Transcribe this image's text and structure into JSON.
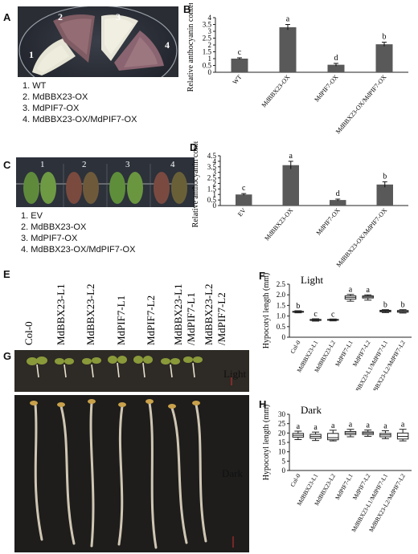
{
  "panels": {
    "A": {
      "label": "A",
      "sectors": [
        "1",
        "2",
        "3",
        "4"
      ],
      "legend": [
        "1. WT",
        "2. MdBBX23-OX",
        "3. MdPIF7-OX",
        "4. MdBBX23-OX/MdPIF7-OX"
      ]
    },
    "C": {
      "label": "C",
      "columns": [
        "1",
        "2",
        "3",
        "4"
      ],
      "legend": [
        "1. EV",
        "2. MdBBX23-OX",
        "3. MdPIF7-OX",
        "4. MdBBX23-OX/MdPIF7-OX"
      ]
    },
    "E": {
      "label": "E",
      "genotypes": [
        "Col-0",
        "MdBBX23-L1",
        "MdBBX23-L2",
        "MdPIF7-L1",
        "MdPIF7-L2",
        "MdBBX23-L1",
        "/MdPIF7-L1",
        "MdBBX23-L2",
        "/MdPIF7-L2"
      ]
    },
    "G": {
      "label": "G",
      "light": "Light",
      "dark": "Dark"
    }
  },
  "chart_data": [
    {
      "id": "B",
      "label": "B",
      "type": "bar",
      "ylabel": "Relative anthocyanin content",
      "categories": [
        "WT",
        "MdBBX23-OX",
        "MdPIF7-OX",
        "MdBBX23-OX/MdPIF7-OX"
      ],
      "values": [
        1.0,
        3.3,
        0.55,
        2.05
      ],
      "errors": [
        0.06,
        0.2,
        0.1,
        0.15
      ],
      "letters": [
        "c",
        "a",
        "d",
        "b"
      ],
      "ylim": [
        0,
        4
      ],
      "ticks": [
        "0",
        "0.5",
        "1",
        "1.5",
        "2",
        "2.5",
        "3",
        "3.5",
        "4"
      ]
    },
    {
      "id": "D",
      "label": "D",
      "type": "bar",
      "ylabel": "Relative anthocyanin content",
      "categories": [
        "EV",
        "MdBBX23-OX",
        "MdPIF7-OX",
        "MdBBX23-OX/MdPIF7-OX"
      ],
      "values": [
        1.0,
        3.65,
        0.5,
        1.9
      ],
      "errors": [
        0.08,
        0.35,
        0.08,
        0.25
      ],
      "letters": [
        "c",
        "a",
        "d",
        "b"
      ],
      "ylim": [
        0,
        4.5
      ],
      "ticks": [
        "0",
        "0.5",
        "1",
        "1.5",
        "2",
        "2.5",
        "3",
        "3.5",
        "4",
        "4.5"
      ]
    },
    {
      "id": "F",
      "label": "F",
      "type": "box",
      "title": "Light",
      "ylabel": "Hypocotyl  length (mm)",
      "categories": [
        "Col-0",
        "MdBBX23-L1",
        "MdBBX23-L2",
        "MdPIF7-L1",
        "MdPIF7-L2",
        "MdBBX23-L1/MdPIF7-L1",
        "MdBBX23-L2/MdPIF7-L2"
      ],
      "boxes": [
        [
          1.15,
          1.18,
          1.2,
          1.22,
          1.25
        ],
        [
          0.76,
          0.79,
          0.81,
          0.84,
          0.87
        ],
        [
          0.77,
          0.8,
          0.82,
          0.84,
          0.86
        ],
        [
          1.7,
          1.8,
          1.88,
          1.95,
          2.02
        ],
        [
          1.75,
          1.85,
          1.9,
          1.95,
          2.0
        ],
        [
          1.16,
          1.2,
          1.23,
          1.27,
          1.3
        ],
        [
          1.14,
          1.18,
          1.22,
          1.26,
          1.3
        ]
      ],
      "letters": [
        "b",
        "c",
        "c",
        "a",
        "a",
        "b",
        "b"
      ],
      "ylim": [
        0,
        2.5
      ],
      "ticks": [
        "0",
        "0.5",
        "1.0",
        "1.5",
        "2.0",
        "2.5"
      ]
    },
    {
      "id": "H",
      "label": "H",
      "type": "box",
      "title": "Dark",
      "ylabel": "Hypocotyl  length (mm)",
      "categories": [
        "Col-0",
        "MdBBX23-L1",
        "MdBBX23-L2",
        "MdPIF7-L1",
        "MdPIF7-L2",
        "MdBBX23-L1/MdPIF7-L1",
        "MdBBX23-L2/MdPIF7-L2"
      ],
      "boxes": [
        [
          16.5,
          17.8,
          18.8,
          19.8,
          21.0
        ],
        [
          16.0,
          17.2,
          18.2,
          19.3,
          20.5
        ],
        [
          15.8,
          16.4,
          17.5,
          19.8,
          21.5
        ],
        [
          18.0,
          19.2,
          20.0,
          20.8,
          22.0
        ],
        [
          18.2,
          19.2,
          20.0,
          20.6,
          21.6
        ],
        [
          17.0,
          18.0,
          19.0,
          19.8,
          21.2
        ],
        [
          15.8,
          16.8,
          18.2,
          20.0,
          22.0
        ]
      ],
      "letters": [
        "a",
        "a",
        "a",
        "a",
        "a",
        "a",
        "a"
      ],
      "ylim": [
        0,
        30
      ],
      "ticks": [
        "0",
        "5",
        "10",
        "15",
        "20",
        "25",
        "30"
      ]
    }
  ]
}
